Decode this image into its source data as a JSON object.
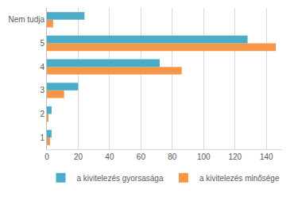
{
  "chart_data": {
    "type": "bar",
    "orientation": "horizontal",
    "categories": [
      "1",
      "2",
      "3",
      "4",
      "5",
      "Nem tudja"
    ],
    "series": [
      {
        "name": "a kivitelezés gyorsasága",
        "color": "#4bacc6",
        "values": [
          3,
          3,
          20,
          72,
          128,
          24
        ]
      },
      {
        "name": "a kivitelezés minősége",
        "color": "#f79646",
        "values": [
          2,
          1,
          11,
          86,
          146,
          4
        ]
      }
    ],
    "xlim": [
      0,
      150
    ],
    "xticks": [
      0,
      20,
      40,
      60,
      80,
      100,
      120,
      140
    ],
    "grid": true,
    "legend": "bottom"
  }
}
